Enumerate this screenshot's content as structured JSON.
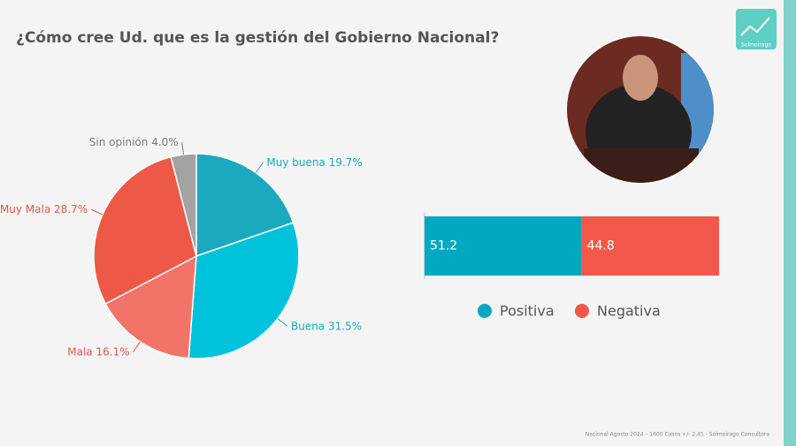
{
  "page": {
    "title": "¿Cómo cree Ud. que es la gestión del Gobierno Nacional?",
    "footer": "Nacional Agosto 2024 – 1600 Casos +/- 2,45 - Solmoirago Consultora",
    "logo": "Solmoirago"
  },
  "chart_data": [
    {
      "type": "pie",
      "categories": [
        "Muy buena",
        "Buena",
        "Mala",
        "Muy Mala",
        "Sin opinión"
      ],
      "values": [
        19.7,
        31.5,
        16.1,
        28.7,
        4.0
      ],
      "value_labels": [
        "19.7%",
        "31.5%",
        "16.1%",
        "28.7%",
        "4.0%"
      ],
      "colors": [
        "#1aa9be",
        "#00c3db",
        "#f27468",
        "#ee5846",
        "#a3a3a3"
      ],
      "label_colors": [
        "#1aa9be",
        "#1aa9be",
        "#e0574a",
        "#e0574a",
        "#7a7a7a"
      ]
    },
    {
      "type": "bar",
      "orientation": "horizontal",
      "stacked": true,
      "series": [
        {
          "name": "Positiva",
          "color": "#00a9c0",
          "values": [
            51.2
          ]
        },
        {
          "name": "Negativa",
          "color": "#f0594a",
          "values": [
            44.8
          ]
        }
      ]
    }
  ]
}
